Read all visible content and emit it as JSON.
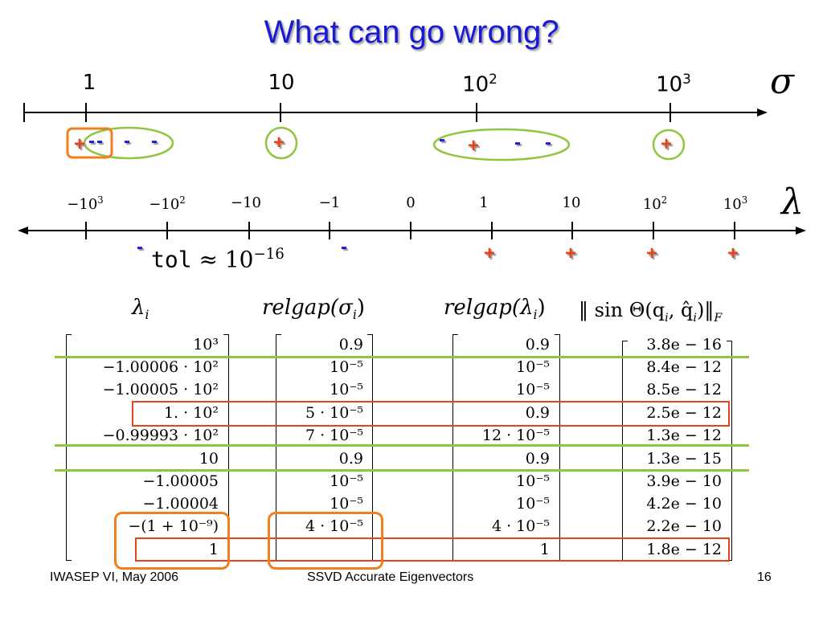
{
  "title": "What can go wrong?",
  "sigma_axis": {
    "name": "σ",
    "ticks": [
      {
        "base": "1",
        "exp": ""
      },
      {
        "base": "10",
        "exp": ""
      },
      {
        "base": "10",
        "exp": "2"
      },
      {
        "base": "10",
        "exp": "3"
      }
    ]
  },
  "lambda_axis": {
    "name": "λ",
    "ticks": [
      {
        "base": "−10",
        "exp": "3"
      },
      {
        "base": "−10",
        "exp": "2"
      },
      {
        "base": "−10",
        "exp": ""
      },
      {
        "base": "−1",
        "exp": ""
      },
      {
        "base": "0",
        "exp": ""
      },
      {
        "base": "1",
        "exp": ""
      },
      {
        "base": "10",
        "exp": ""
      },
      {
        "base": "10",
        "exp": "2"
      },
      {
        "base": "10",
        "exp": "3"
      }
    ]
  },
  "signs": {
    "plus": "+",
    "minus": "-"
  },
  "tol": {
    "word": "tol",
    "approx": "≈",
    "base": "10",
    "exp": "−16"
  },
  "headers": {
    "lambda": "λ",
    "lambda_sub": "i",
    "relgap_sigma": "relgap(σ",
    "relgap_lambda": "relgap(λ",
    "sin_theta": "‖ sin Θ(q",
    "sub_i": "i",
    "close": ")",
    "sin_mid": ", q̂",
    "sin_end": ")‖",
    "sin_F": "F"
  },
  "table": {
    "lambda": [
      "10³",
      "−1.00006 · 10²",
      "−1.00005 · 10²",
      "1. · 10²",
      "−0.99993 · 10²",
      "10",
      "−1.00005",
      "−1.00004",
      "−(1 + 10⁻⁹)",
      "1"
    ],
    "relgap_sigma": [
      "0.9",
      "10⁻⁵",
      "10⁻⁵",
      "5 · 10⁻⁵",
      "7 · 10⁻⁵",
      "0.9",
      "10⁻⁵",
      "10⁻⁵",
      "4 · 10⁻⁵",
      ""
    ],
    "relgap_lambda": [
      "0.9",
      "10⁻⁵",
      "10⁻⁵",
      "0.9",
      "12 · 10⁻⁵",
      "0.9",
      "10⁻⁵",
      "10⁻⁵",
      "4 · 10⁻⁵",
      "1"
    ],
    "sin_theta": [
      "3.8e − 16",
      "8.4e − 12",
      "8.5e − 12",
      "2.5e − 12",
      "1.3e − 12",
      "1.3e − 15",
      "3.9e − 10",
      "4.2e − 10",
      "2.2e − 10",
      "1.8e − 12"
    ]
  },
  "footer": {
    "left": "IWASEP VI, May 2006",
    "center": "SSVD Accurate Eigenvectors",
    "right": "16"
  },
  "colors": {
    "title": "#1a1ad6",
    "plus": "#e8421a",
    "minus": "#1a1ad6",
    "green": "#8ec63f",
    "orange": "#f07f1e",
    "red": "#e8421a"
  }
}
